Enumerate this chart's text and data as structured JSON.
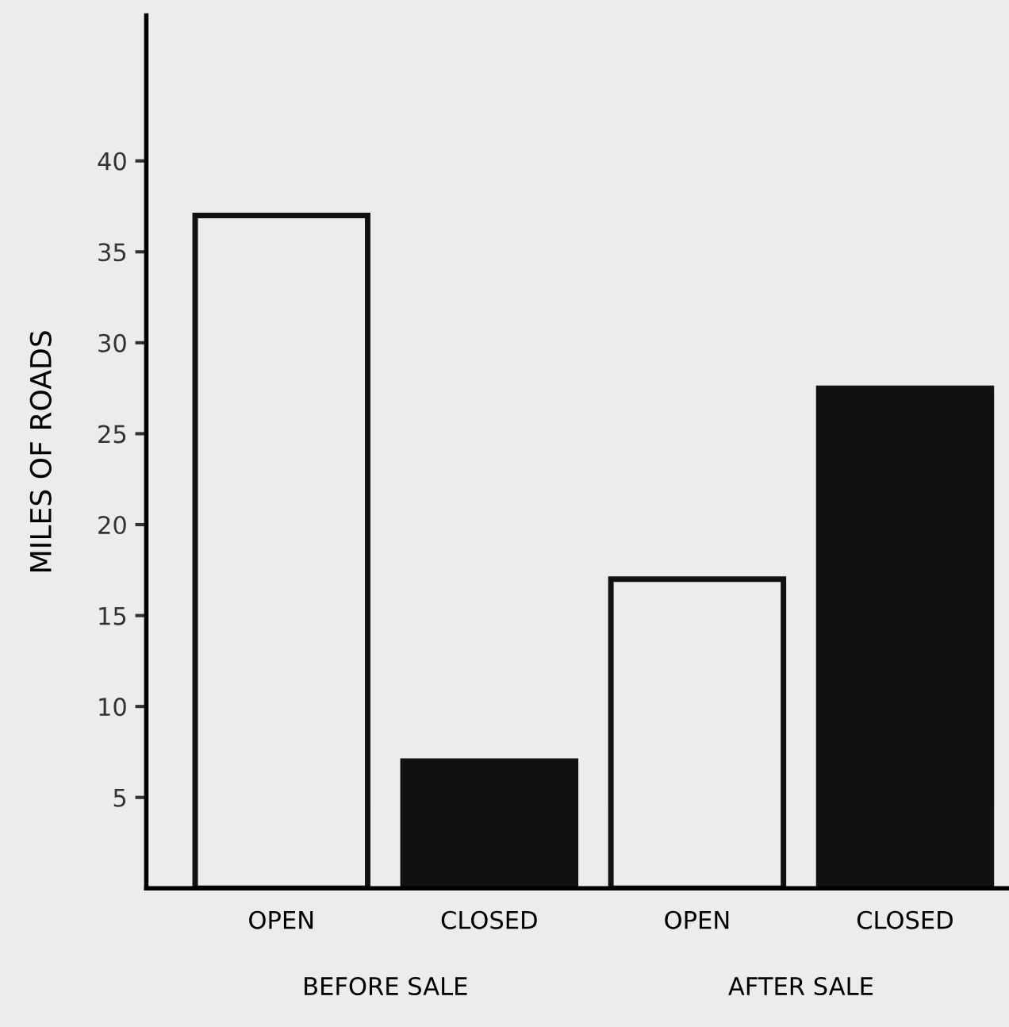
{
  "chart_data": {
    "type": "bar",
    "ylabel": "MILES OF ROADS",
    "categories": [
      "OPEN",
      "CLOSED",
      "OPEN",
      "CLOSED"
    ],
    "values": [
      37,
      7,
      17,
      27.5
    ],
    "colors": [
      "#ececea",
      "#111111",
      "#ececea",
      "#111111"
    ],
    "ylim": [
      0,
      48
    ],
    "yticks": [
      5,
      10,
      15,
      20,
      25,
      30,
      35,
      40
    ],
    "grid": false,
    "legend": false,
    "annotations": [
      "BEFORE SALE",
      "AFTER SALE"
    ]
  }
}
